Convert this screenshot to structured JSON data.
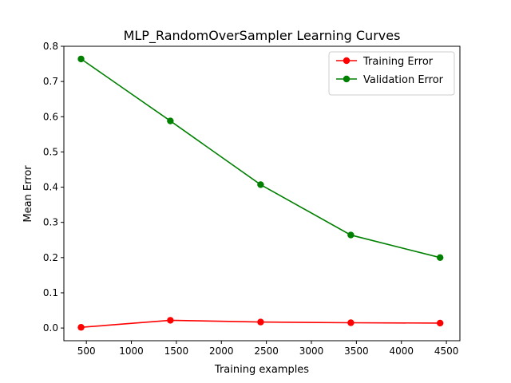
{
  "chart_data": {
    "type": "line",
    "title": "MLP_RandomOverSampler Learning Curves",
    "xlabel": "Training examples",
    "ylabel": "Mean Error",
    "xlim": [
      250,
      4650
    ],
    "ylim": [
      -0.036,
      0.8
    ],
    "x_ticks": [
      500,
      1000,
      1500,
      2000,
      2500,
      3000,
      3500,
      4000,
      4500
    ],
    "y_ticks": [
      0.0,
      0.1,
      0.2,
      0.3,
      0.4,
      0.5,
      0.6,
      0.7,
      0.8
    ],
    "x_tick_labels": [
      "500",
      "1000",
      "1500",
      "2000",
      "2500",
      "3000",
      "3500",
      "4000",
      "4500"
    ],
    "y_tick_labels": [
      "0.0",
      "0.1",
      "0.2",
      "0.3",
      "0.4",
      "0.5",
      "0.6",
      "0.7",
      "0.8"
    ],
    "grid": false,
    "legend_position": "top-right",
    "x": [
      441,
      1433,
      2436,
      3438,
      4430
    ],
    "series": [
      {
        "name": "Training Error",
        "color": "#ff0000",
        "marker": "circle",
        "values": [
          0.002,
          0.022,
          0.017,
          0.015,
          0.014
        ]
      },
      {
        "name": "Validation Error",
        "color": "#008000",
        "marker": "circle",
        "values": [
          0.764,
          0.588,
          0.407,
          0.264,
          0.2
        ]
      }
    ]
  }
}
